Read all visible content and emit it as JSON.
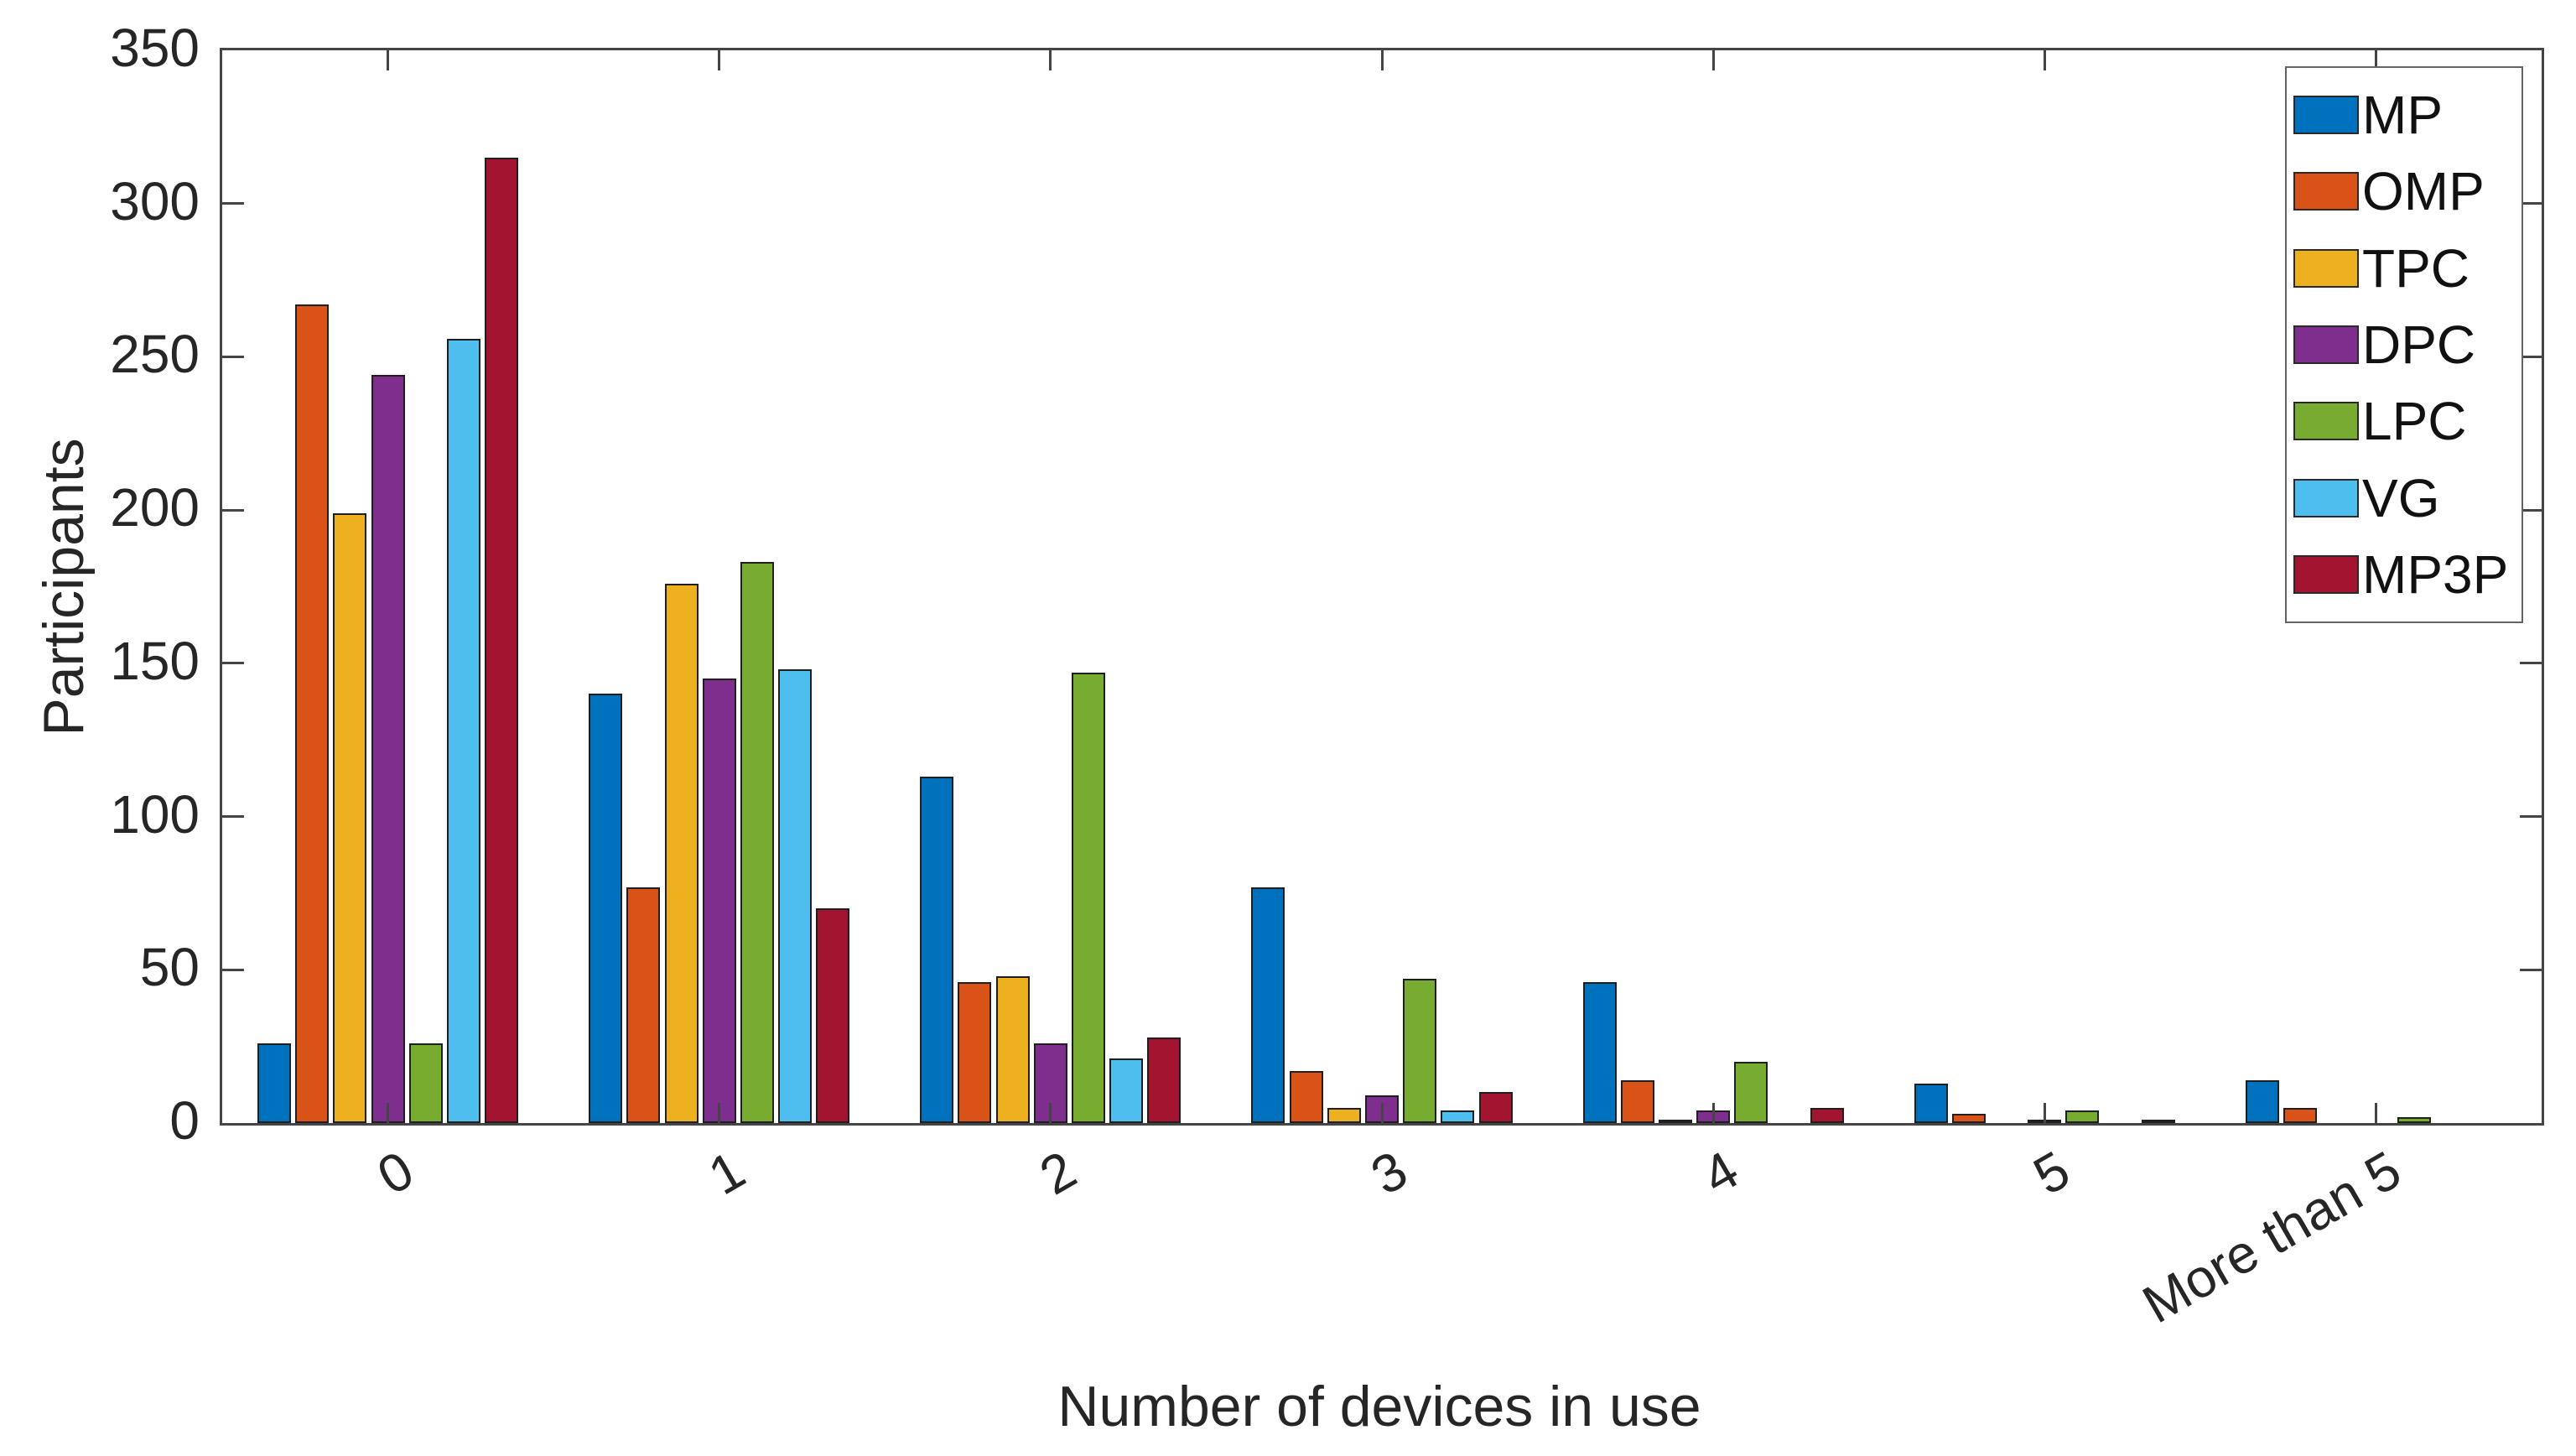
{
  "figure": {
    "background": "#ffffff",
    "axis_color": "#454545",
    "text_color": "#262626",
    "bar_edge_color": "#1f1f1f"
  },
  "chart_data": {
    "type": "bar",
    "title": "",
    "xlabel": "Number of devices in use",
    "ylabel": "Participants",
    "categories": [
      "0",
      "1",
      "2",
      "3",
      "4",
      "5",
      "More than 5"
    ],
    "series": [
      {
        "name": "MP",
        "color": "#0072BD",
        "values": [
          26,
          140,
          113,
          77,
          46,
          13,
          14
        ]
      },
      {
        "name": "OMP",
        "color": "#D95319",
        "values": [
          267,
          77,
          46,
          17,
          14,
          3,
          5
        ]
      },
      {
        "name": "TPC",
        "color": "#EDB120",
        "values": [
          199,
          176,
          48,
          5,
          1,
          0,
          0
        ]
      },
      {
        "name": "DPC",
        "color": "#7E2F8E",
        "values": [
          244,
          145,
          26,
          9,
          4,
          1,
          0
        ]
      },
      {
        "name": "LPC",
        "color": "#77AC30",
        "values": [
          26,
          183,
          147,
          47,
          20,
          4,
          2
        ]
      },
      {
        "name": "VG",
        "color": "#4DBEEE",
        "values": [
          256,
          148,
          21,
          4,
          0,
          0,
          0
        ]
      },
      {
        "name": "MP3P",
        "color": "#A2142F",
        "values": [
          315,
          70,
          28,
          10,
          5,
          1,
          0
        ]
      }
    ],
    "ylim": [
      0,
      350
    ],
    "yticks": [
      0,
      50,
      100,
      150,
      200,
      250,
      300,
      350
    ],
    "legend_position": "top-right",
    "grid": false,
    "xtick_rotation_deg": 30
  }
}
